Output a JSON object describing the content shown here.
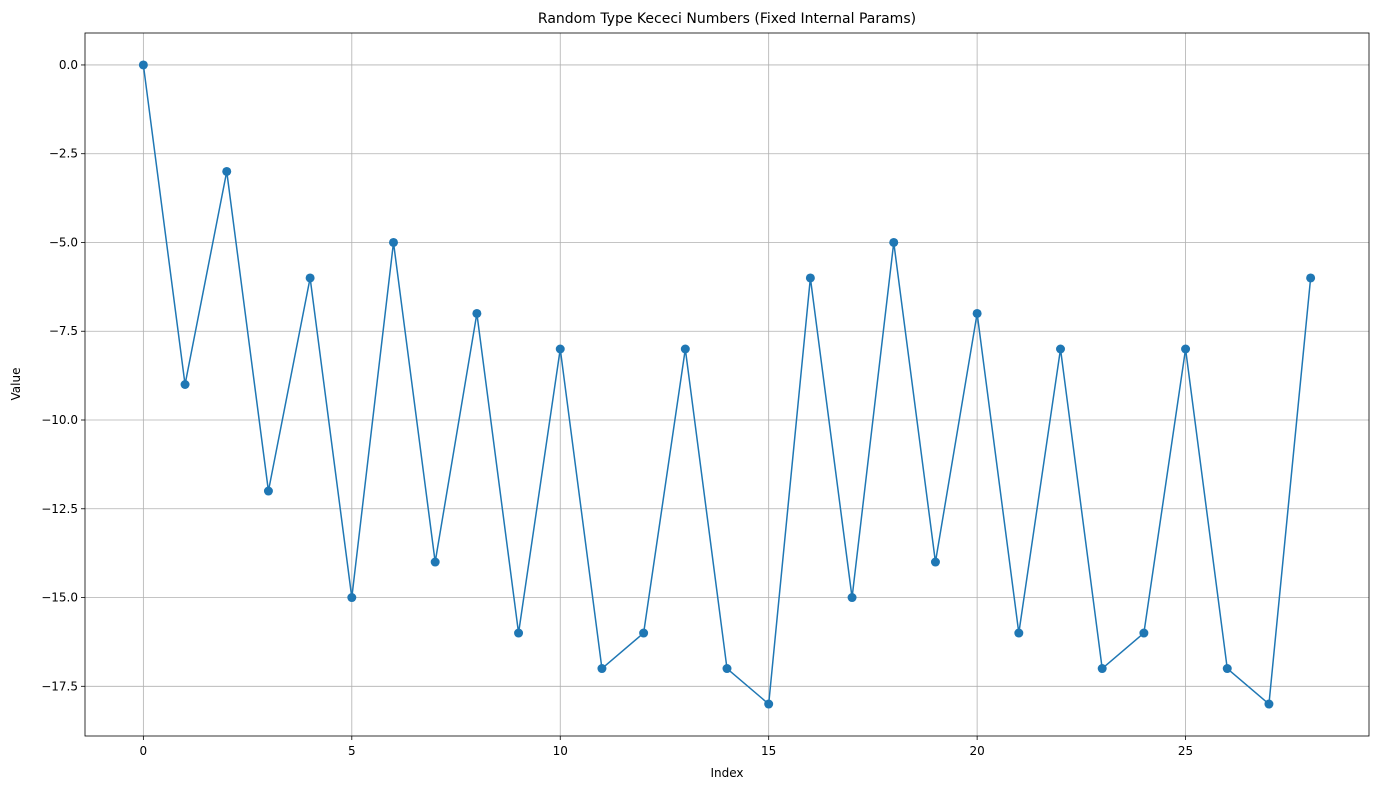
{
  "chart_data": {
    "type": "line",
    "title": "Random Type Kececi Numbers (Fixed Internal Params)",
    "xlabel": "Index",
    "ylabel": "Value",
    "xlim": [
      -1.4,
      29.4
    ],
    "ylim": [
      -18.9,
      0.9
    ],
    "xticks": [
      0,
      5,
      10,
      15,
      20,
      25
    ],
    "yticks": [
      0.0,
      -2.5,
      -5.0,
      -7.5,
      -10.0,
      -12.5,
      -15.0,
      -17.5
    ],
    "xtick_labels": [
      "0",
      "5",
      "10",
      "15",
      "20",
      "25"
    ],
    "ytick_labels": [
      "0.0",
      "−2.5",
      "−5.0",
      "−7.5",
      "−10.0",
      "−12.5",
      "−15.0",
      "−17.5"
    ],
    "grid": true,
    "marker": "circle",
    "color": "#1f77b4",
    "series": [
      {
        "x": [
          0,
          1,
          2,
          3,
          4,
          5,
          6,
          7,
          8,
          9,
          10,
          11,
          12,
          13,
          14,
          15,
          16,
          17,
          18,
          19,
          20,
          21,
          22,
          23,
          24,
          25,
          26,
          27,
          28
        ],
        "values": [
          0,
          -9,
          -3,
          -12,
          -6,
          -15,
          -5,
          -14,
          -7,
          -16,
          -8,
          -17,
          -16,
          -8,
          -17,
          -18,
          -6,
          -15,
          -5,
          -14,
          -7,
          -16,
          -8,
          -17,
          -16,
          -8,
          -17,
          -18,
          -6
        ]
      }
    ]
  }
}
